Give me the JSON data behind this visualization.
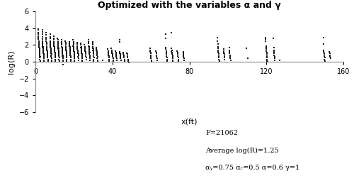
{
  "title": "Optimized with the variables α and γ",
  "xlabel": "x(ft)",
  "ylabel": "log(R)",
  "xlim": [
    0,
    160
  ],
  "ylim": [
    -6,
    6
  ],
  "yticks": [
    -6,
    -4,
    -2,
    0,
    2,
    4,
    6
  ],
  "xticks": [
    0,
    40,
    80,
    120,
    160
  ],
  "annotation_line1": "F=21062",
  "annotation_line2": "Average log(R)=1.25",
  "annotation_line3": "αᵧ=0.75 αᵣ=0.5 α=0.6 γ=1",
  "point_color": "#1a1a1a",
  "point_size": 3,
  "clusters": [
    {
      "x_center": 2,
      "x_spread": 1.2,
      "y_values": [
        3.9,
        3.8,
        3.5,
        3.3,
        3.1,
        2.9,
        2.7,
        2.5,
        2.3,
        2.2,
        2.1,
        2.0,
        1.9,
        1.8,
        1.7,
        1.6,
        1.5,
        1.4,
        1.3,
        1.2,
        1.1,
        1.0,
        0.9,
        0.8,
        0.7,
        0.6,
        0.5,
        0.3,
        0.1,
        0.0
      ]
    },
    {
      "x_center": 4,
      "x_spread": 1.2,
      "y_values": [
        3.8,
        3.6,
        3.3,
        3.0,
        2.7,
        2.5,
        2.3,
        2.1,
        2.0,
        1.9,
        1.8,
        1.7,
        1.6,
        1.5,
        1.4,
        1.3,
        1.2,
        1.1,
        1.0,
        0.9,
        0.8,
        0.7,
        0.6,
        0.5,
        0.4,
        0.2,
        0.1,
        0.0
      ]
    },
    {
      "x_center": 6,
      "x_spread": 1.0,
      "y_values": [
        3.5,
        3.2,
        2.9,
        2.7,
        2.5,
        2.3,
        2.1,
        1.9,
        1.8,
        1.7,
        1.6,
        1.5,
        1.4,
        1.3,
        1.2,
        1.1,
        1.0,
        0.9,
        0.8,
        0.7,
        0.6,
        0.5,
        0.3,
        0.1
      ]
    },
    {
      "x_center": 8,
      "x_spread": 1.0,
      "y_values": [
        3.3,
        3.0,
        2.8,
        2.5,
        2.3,
        2.1,
        2.0,
        1.9,
        1.8,
        1.7,
        1.6,
        1.5,
        1.4,
        1.3,
        1.2,
        1.1,
        1.0,
        0.9,
        0.8,
        0.7,
        0.6,
        0.4,
        0.2,
        0.1
      ]
    },
    {
      "x_center": 10,
      "x_spread": 1.0,
      "y_values": [
        3.1,
        2.8,
        2.6,
        2.4,
        2.2,
        2.0,
        1.9,
        1.8,
        1.7,
        1.6,
        1.5,
        1.4,
        1.3,
        1.2,
        1.1,
        1.0,
        0.9,
        0.8,
        0.7,
        0.5,
        0.3,
        0.1
      ]
    },
    {
      "x_center": 12,
      "x_spread": 0.9,
      "y_values": [
        2.8,
        2.6,
        2.4,
        2.2,
        2.0,
        1.9,
        1.8,
        1.7,
        1.6,
        1.5,
        1.4,
        1.3,
        1.2,
        1.1,
        1.0,
        0.9,
        0.8,
        0.7,
        0.5,
        0.3,
        0.1
      ]
    },
    {
      "x_center": 14,
      "x_spread": 0.9,
      "y_values": [
        2.6,
        2.4,
        2.2,
        2.0,
        1.8,
        1.7,
        1.6,
        1.5,
        1.4,
        1.3,
        1.2,
        1.1,
        1.0,
        0.9,
        0.8,
        0.7,
        0.6,
        0.4,
        0.2,
        0.0,
        -0.3
      ]
    },
    {
      "x_center": 16,
      "x_spread": 0.9,
      "y_values": [
        2.5,
        2.3,
        2.1,
        1.9,
        1.8,
        1.7,
        1.6,
        1.5,
        1.4,
        1.3,
        1.2,
        1.1,
        1.0,
        0.9,
        0.8,
        0.7,
        0.5,
        0.3,
        0.1
      ]
    },
    {
      "x_center": 18,
      "x_spread": 0.9,
      "y_values": [
        2.4,
        2.2,
        2.0,
        1.9,
        1.8,
        1.7,
        1.6,
        1.5,
        1.4,
        1.3,
        1.2,
        1.1,
        1.0,
        0.9,
        0.8,
        0.7,
        0.5,
        0.3,
        0.1
      ]
    },
    {
      "x_center": 20,
      "x_spread": 0.9,
      "y_values": [
        2.6,
        2.4,
        2.2,
        2.0,
        1.9,
        1.8,
        1.7,
        1.6,
        1.5,
        1.4,
        1.3,
        1.2,
        1.1,
        1.0,
        0.9,
        0.8,
        0.6,
        0.4,
        0.2,
        0.0
      ]
    },
    {
      "x_center": 22,
      "x_spread": 0.9,
      "y_values": [
        2.3,
        2.1,
        1.9,
        1.8,
        1.7,
        1.6,
        1.5,
        1.4,
        1.3,
        1.2,
        1.1,
        1.0,
        0.9,
        0.8,
        0.6,
        0.4,
        0.2
      ]
    },
    {
      "x_center": 24,
      "x_spread": 0.9,
      "y_values": [
        2.2,
        2.0,
        1.8,
        1.7,
        1.6,
        1.5,
        1.4,
        1.3,
        1.2,
        1.1,
        1.0,
        0.9,
        0.8,
        0.6,
        0.4,
        0.2,
        0.0
      ]
    },
    {
      "x_center": 26,
      "x_spread": 0.9,
      "y_values": [
        2.0,
        1.8,
        1.7,
        1.6,
        1.5,
        1.4,
        1.3,
        1.2,
        1.1,
        1.0,
        0.9,
        0.7,
        0.5,
        0.3
      ]
    },
    {
      "x_center": 28,
      "x_spread": 0.9,
      "y_values": [
        2.6,
        2.4,
        2.2,
        1.9,
        1.8,
        1.7,
        1.6,
        1.5,
        1.4,
        1.3,
        1.2,
        1.1,
        1.0,
        0.9,
        0.8,
        0.6,
        0.4,
        0.2
      ]
    },
    {
      "x_center": 30,
      "x_spread": 0.9,
      "y_values": [
        2.4,
        2.2,
        2.0,
        1.8,
        1.7,
        1.6,
        1.5,
        1.4,
        1.3,
        1.2,
        1.1,
        1.0,
        0.9,
        0.7,
        0.5,
        0.3,
        0.1
      ]
    },
    {
      "x_center": 32,
      "x_spread": 0.8,
      "y_values": [
        1.7,
        1.5,
        1.4,
        1.3,
        1.2,
        1.1,
        1.0,
        0.9,
        0.8,
        0.6,
        0.4,
        0.2,
        0.0
      ]
    },
    {
      "x_center": 35,
      "x_spread": 0.4,
      "y_values": [
        0.2
      ]
    },
    {
      "x_center": 38,
      "x_spread": 1.0,
      "y_values": [
        1.5,
        1.3,
        1.2,
        1.1,
        1.0,
        0.9,
        0.8,
        0.7,
        0.5,
        0.3,
        0.1
      ]
    },
    {
      "x_center": 40,
      "x_spread": 1.0,
      "y_values": [
        1.6,
        1.4,
        1.2,
        1.1,
        1.0,
        0.9,
        0.8,
        0.6,
        0.4,
        0.2,
        0.0
      ]
    },
    {
      "x_center": 42,
      "x_spread": 0.8,
      "y_values": [
        1.3,
        1.1,
        1.0,
        0.9,
        0.8,
        0.6,
        0.4,
        0.2
      ]
    },
    {
      "x_center": 44,
      "x_spread": 0.8,
      "y_values": [
        2.6,
        2.4,
        1.2,
        1.0,
        0.9,
        0.8,
        0.6,
        0.4,
        0.2
      ]
    },
    {
      "x_center": 46,
      "x_spread": 0.8,
      "y_values": [
        1.1,
        0.9,
        0.8,
        0.7,
        0.5,
        0.3,
        0.1
      ]
    },
    {
      "x_center": 48,
      "x_spread": 0.8,
      "y_values": [
        1.0,
        0.9,
        0.7,
        0.5,
        0.3,
        0.1,
        -0.1
      ]
    },
    {
      "x_center": 60,
      "x_spread": 0.8,
      "y_values": [
        1.6,
        1.4,
        1.2,
        1.1,
        1.0,
        0.8,
        0.6,
        0.4,
        0.2,
        0.0
      ]
    },
    {
      "x_center": 63,
      "x_spread": 0.8,
      "y_values": [
        1.3,
        1.1,
        1.0,
        0.8,
        0.6,
        0.4,
        0.2
      ]
    },
    {
      "x_center": 68,
      "x_spread": 0.8,
      "y_values": [
        3.3,
        2.8,
        1.7,
        1.5,
        1.3,
        1.1,
        1.0,
        0.9,
        0.7,
        0.5,
        0.3,
        0.1,
        0.0
      ]
    },
    {
      "x_center": 71,
      "x_spread": 0.8,
      "y_values": [
        3.5,
        1.6,
        1.4,
        1.2,
        1.1,
        1.0,
        0.9,
        0.8,
        0.6,
        0.4,
        0.2,
        0.0
      ]
    },
    {
      "x_center": 74,
      "x_spread": 0.7,
      "y_values": [
        1.3,
        1.1,
        1.0,
        0.9,
        0.7,
        0.5,
        0.3,
        0.1
      ]
    },
    {
      "x_center": 77,
      "x_spread": 0.7,
      "y_values": [
        1.2,
        1.0,
        0.9,
        0.8,
        0.6,
        0.4,
        0.2
      ]
    },
    {
      "x_center": 95,
      "x_spread": 1.0,
      "y_values": [
        2.9,
        2.5,
        2.1,
        1.8,
        1.6,
        1.4,
        1.2,
        1.1,
        1.0,
        0.9,
        0.7,
        0.5,
        0.3,
        0.1
      ]
    },
    {
      "x_center": 98,
      "x_spread": 0.8,
      "y_values": [
        1.5,
        1.3,
        1.1,
        1.0,
        0.9,
        0.7,
        0.5,
        0.3
      ]
    },
    {
      "x_center": 101,
      "x_spread": 0.8,
      "y_values": [
        1.7,
        1.4,
        1.2,
        1.0,
        0.8,
        0.6,
        0.4,
        0.2
      ]
    },
    {
      "x_center": 110,
      "x_spread": 0.4,
      "y_values": [
        1.6,
        0.4
      ]
    },
    {
      "x_center": 120,
      "x_spread": 1.0,
      "y_values": [
        2.9,
        2.7,
        2.5,
        1.9,
        1.7,
        1.5,
        1.3,
        1.1,
        0.9,
        0.7,
        0.5,
        0.3,
        0.1,
        0.0
      ]
    },
    {
      "x_center": 124,
      "x_spread": 0.8,
      "y_values": [
        2.8,
        1.7,
        1.4,
        1.2,
        1.0,
        0.8,
        0.6,
        0.4,
        0.2
      ]
    },
    {
      "x_center": 127,
      "x_spread": 0.4,
      "y_values": [
        0.2
      ]
    },
    {
      "x_center": 150,
      "x_spread": 1.0,
      "y_values": [
        2.9,
        2.1,
        1.4,
        1.2,
        1.0,
        0.9,
        0.7,
        0.5,
        0.3,
        0.1,
        0.0
      ]
    },
    {
      "x_center": 153,
      "x_spread": 0.7,
      "y_values": [
        1.2,
        1.0,
        0.8,
        0.6,
        0.4
      ]
    }
  ]
}
